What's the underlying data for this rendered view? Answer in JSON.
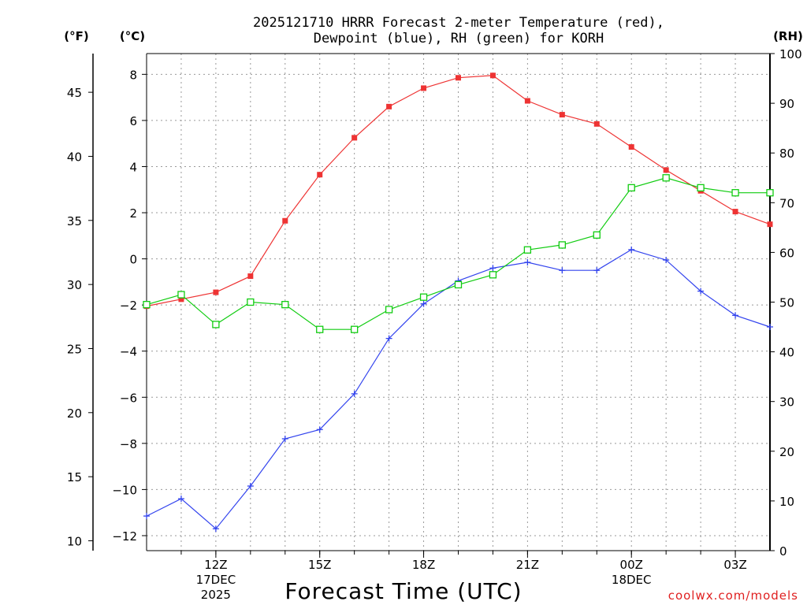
{
  "chart_data": {
    "type": "line",
    "title_line1": "2025121710 HRRR Forecast 2-meter Temperature (red),",
    "title_line2": "Dewpoint (blue), RH (green) for KORH",
    "xlabel": "Forecast Time (UTC)",
    "watermark": "coolwx.com/models",
    "unit_f": "(°F)",
    "unit_c": "(°C)",
    "unit_rh": "(RH)",
    "x_hours": [
      10,
      11,
      12,
      13,
      14,
      15,
      16,
      17,
      18,
      19,
      20,
      21,
      22,
      23,
      24,
      25,
      26,
      27,
      28
    ],
    "xlim": [
      10,
      28
    ],
    "ylim_c": [
      -12.65,
      8.9
    ],
    "ylim_rh": [
      0,
      100
    ],
    "ylim_f_ticks": [
      10,
      15,
      20,
      25,
      30,
      35,
      40,
      45
    ],
    "c_ticks": [
      -12,
      -10,
      -8,
      -6,
      -4,
      -2,
      0,
      2,
      4,
      6,
      8
    ],
    "c_tick_labels": [
      "−12",
      "−10",
      "−8",
      "−6",
      "−4",
      "−2",
      "0",
      "2",
      "4",
      "6",
      "8"
    ],
    "rh_ticks": [
      0,
      10,
      20,
      30,
      40,
      50,
      60,
      70,
      80,
      90,
      100
    ],
    "x_ticks": [
      {
        "hour": 12,
        "label": "12Z",
        "sub1": "17DEC",
        "sub2": "2025"
      },
      {
        "hour": 15,
        "label": "15Z",
        "sub1": "",
        "sub2": ""
      },
      {
        "hour": 18,
        "label": "18Z",
        "sub1": "",
        "sub2": ""
      },
      {
        "hour": 21,
        "label": "21Z",
        "sub1": "",
        "sub2": ""
      },
      {
        "hour": 24,
        "label": "00Z",
        "sub1": "18DEC",
        "sub2": ""
      },
      {
        "hour": 27,
        "label": "03Z",
        "sub1": "",
        "sub2": ""
      }
    ],
    "series": [
      {
        "name": "2-meter Temperature",
        "color": "#ee3333",
        "axis": "c",
        "marker": "filled-square",
        "values": [
          -2.05,
          -1.75,
          -1.45,
          -0.75,
          1.65,
          3.65,
          5.25,
          6.6,
          7.4,
          7.85,
          7.95,
          6.85,
          6.25,
          5.85,
          4.85,
          3.85,
          2.95,
          2.05,
          1.5
        ]
      },
      {
        "name": "Dewpoint",
        "color": "#3344ee",
        "axis": "c",
        "marker": "plus",
        "values": [
          -11.15,
          -10.4,
          -11.7,
          -9.85,
          -7.8,
          -7.4,
          -5.85,
          -3.45,
          -1.95,
          -0.95,
          -0.4,
          -0.15,
          -0.5,
          -0.5,
          0.4,
          -0.05,
          -1.4,
          -2.45,
          -2.95
        ]
      },
      {
        "name": "RH",
        "color": "#11cc11",
        "axis": "rh",
        "marker": "open-square",
        "values": [
          49.5,
          51.5,
          45.5,
          50,
          49.5,
          44.5,
          44.5,
          48.5,
          51,
          53.5,
          55.5,
          60.5,
          61.5,
          63.5,
          73,
          75,
          73,
          72,
          72
        ]
      }
    ]
  }
}
